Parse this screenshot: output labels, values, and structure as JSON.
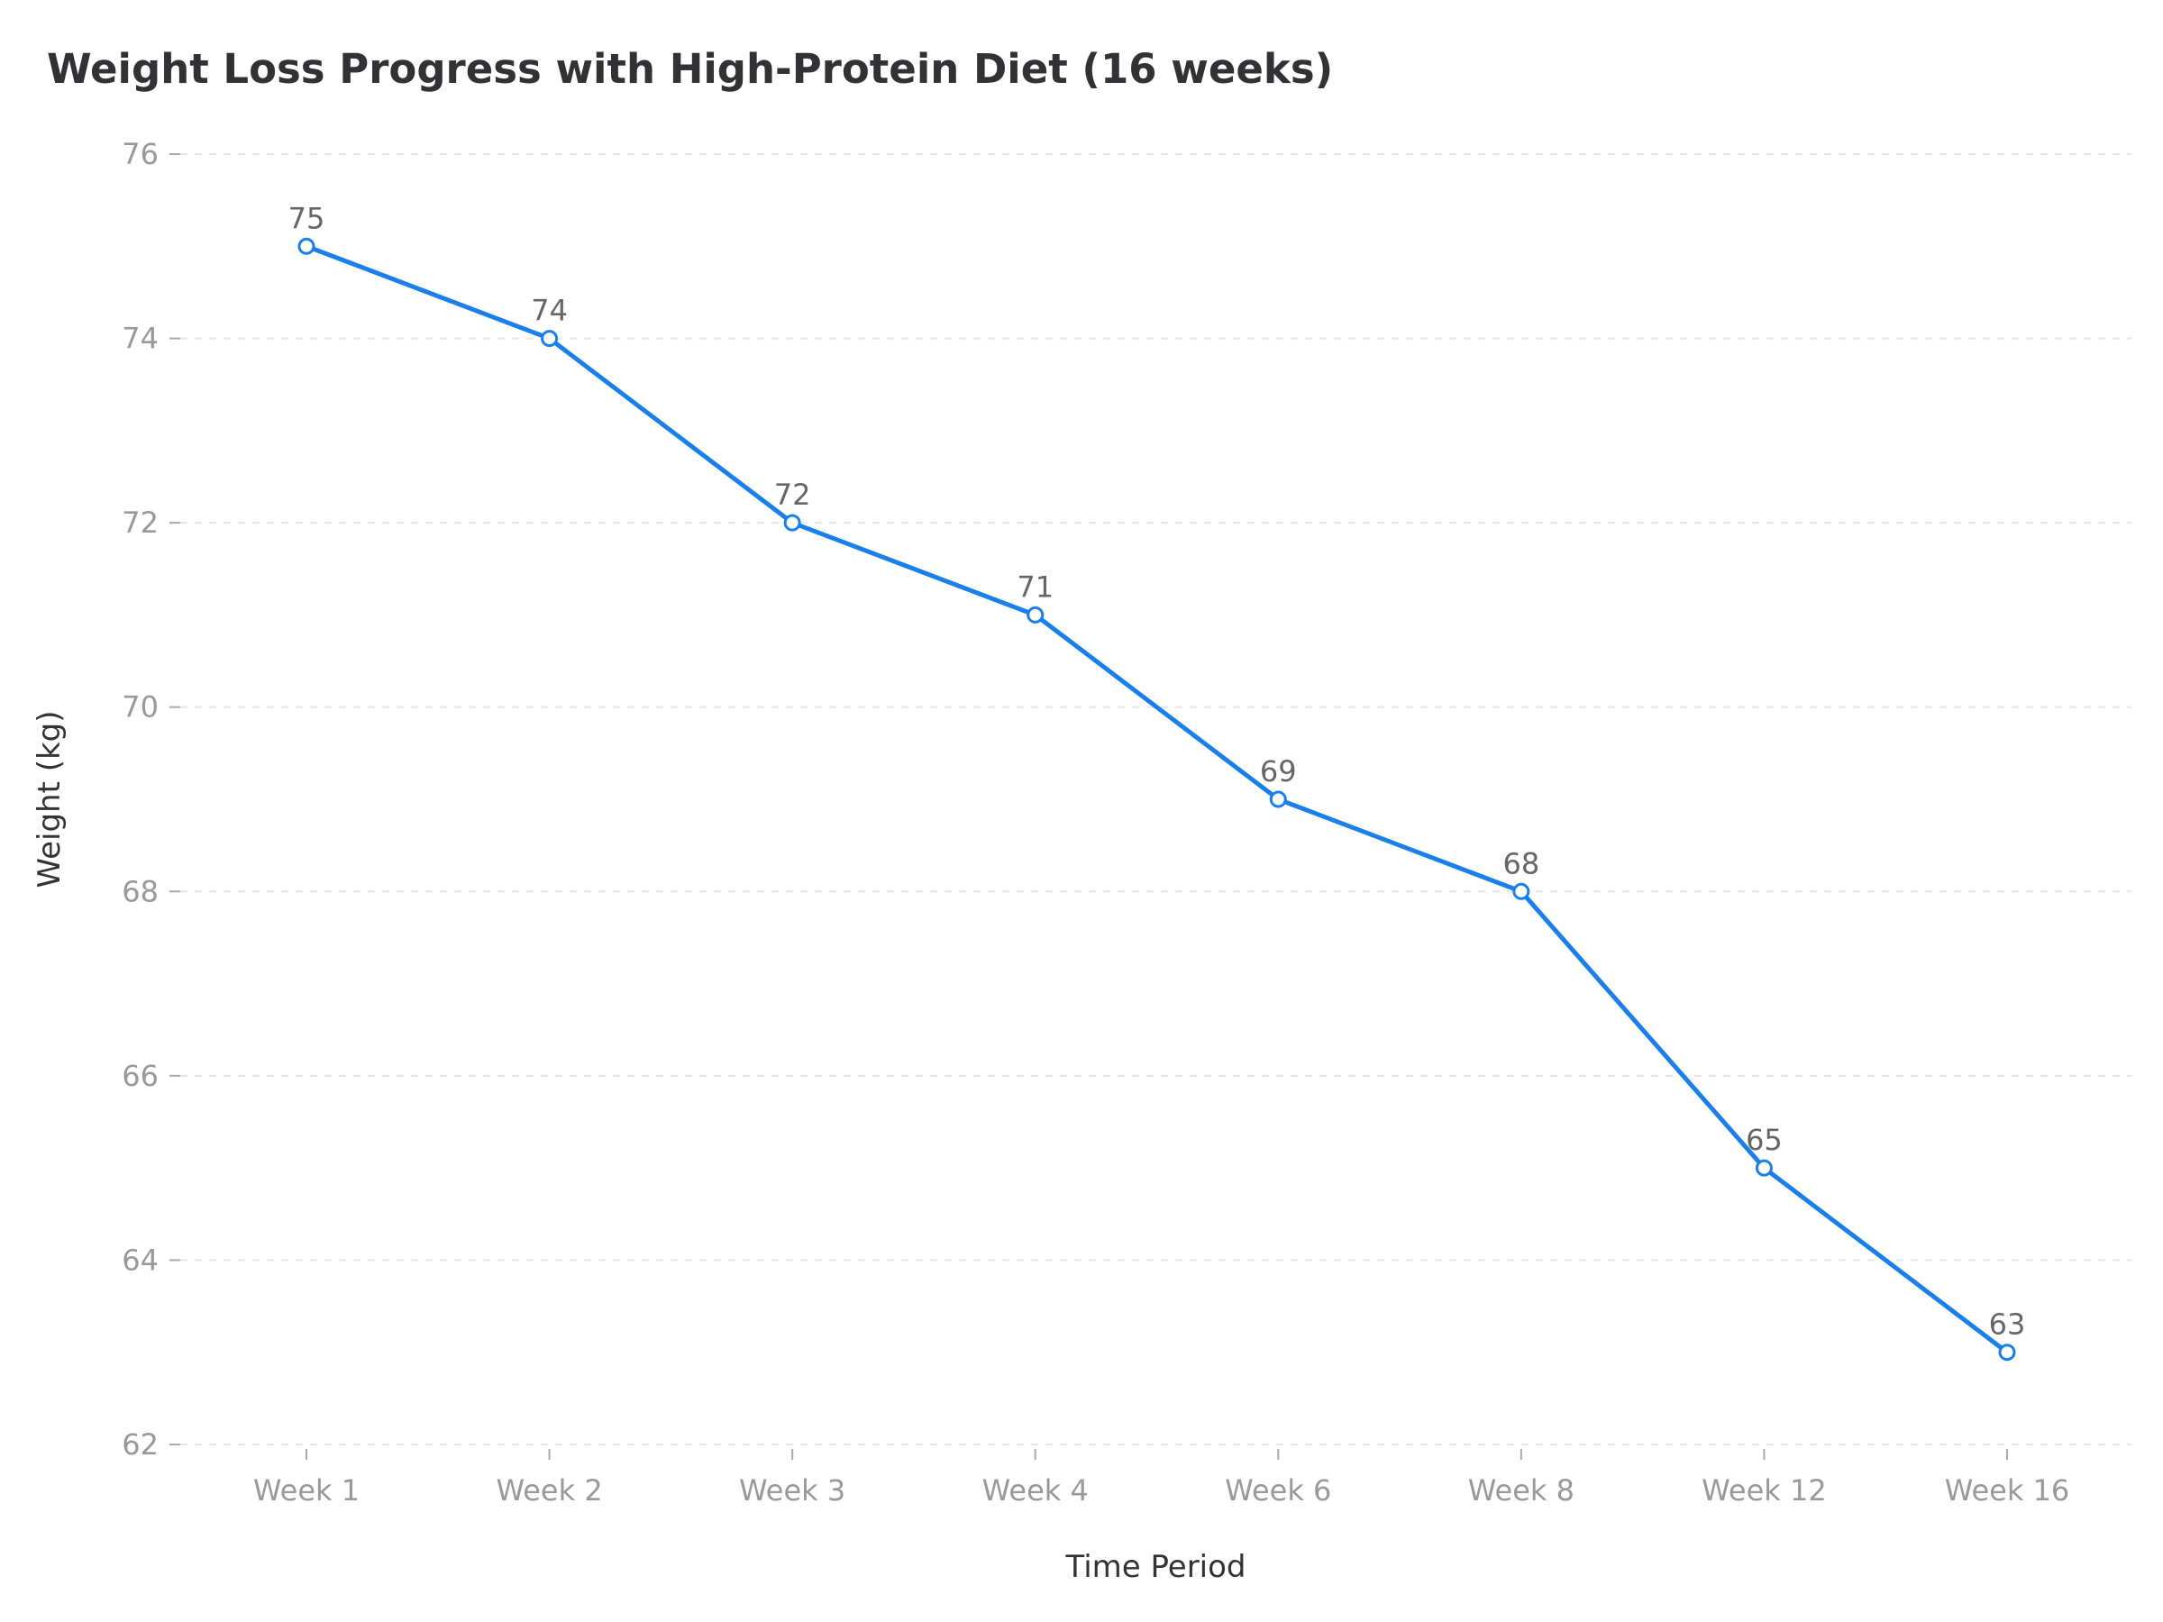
{
  "chart_data": {
    "type": "line",
    "title": "Weight Loss Progress with High-Protein Diet (16 weeks)",
    "xlabel": "Time Period",
    "ylabel": "Weight (kg)",
    "categories": [
      "Week 1",
      "Week 2",
      "Week 3",
      "Week 4",
      "Week 6",
      "Week 8",
      "Week 12",
      "Week 16"
    ],
    "series": [
      {
        "name": "Weight",
        "values": [
          75,
          74,
          72,
          71,
          69,
          68,
          65,
          63
        ],
        "color": "#1a7fea"
      }
    ],
    "ylim": [
      62,
      76
    ],
    "yticks": [
      62,
      64,
      66,
      68,
      70,
      72,
      74,
      76
    ],
    "grid": true,
    "data_labels": true
  }
}
